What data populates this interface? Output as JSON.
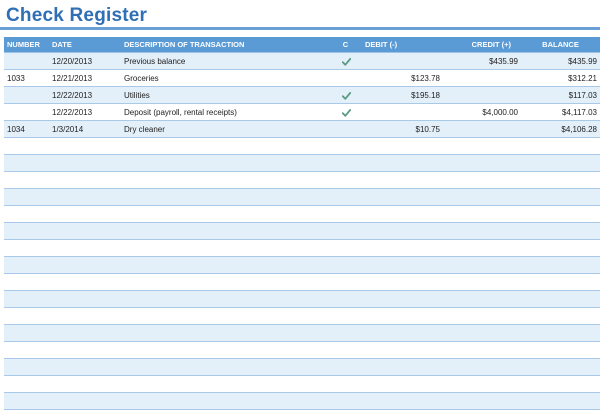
{
  "title": "Check Register",
  "columns": {
    "number": "NUMBER",
    "date": "DATE",
    "description": "DESCRIPTION OF TRANSACTION",
    "cleared": "C",
    "debit": "DEBIT (-)",
    "credit": "CREDIT (+)",
    "balance": "BALANCE"
  },
  "colors": {
    "header": "#5b9bd5",
    "title": "#2e6fb5",
    "band": "#e3eff9",
    "check": "#5a9a82"
  },
  "rows": [
    {
      "number": "",
      "date": "12/20/2013",
      "description": "Previous balance",
      "cleared": true,
      "debit": "",
      "credit": "$435.99",
      "balance": "$435.99"
    },
    {
      "number": "1033",
      "date": "12/21/2013",
      "description": "Groceries",
      "cleared": false,
      "debit": "$123.78",
      "credit": "",
      "balance": "$312.21"
    },
    {
      "number": "",
      "date": "12/22/2013",
      "description": "Utilities",
      "cleared": true,
      "debit": "$195.18",
      "credit": "",
      "balance": "$117.03"
    },
    {
      "number": "",
      "date": "12/22/2013",
      "description": "Deposit (payroll, rental receipts)",
      "cleared": true,
      "debit": "",
      "credit": "$4,000.00",
      "balance": "$4,117.03"
    },
    {
      "number": "1034",
      "date": "1/3/2014",
      "description": "Dry cleaner",
      "cleared": false,
      "debit": "$10.75",
      "credit": "",
      "balance": "$4,106.28"
    }
  ]
}
